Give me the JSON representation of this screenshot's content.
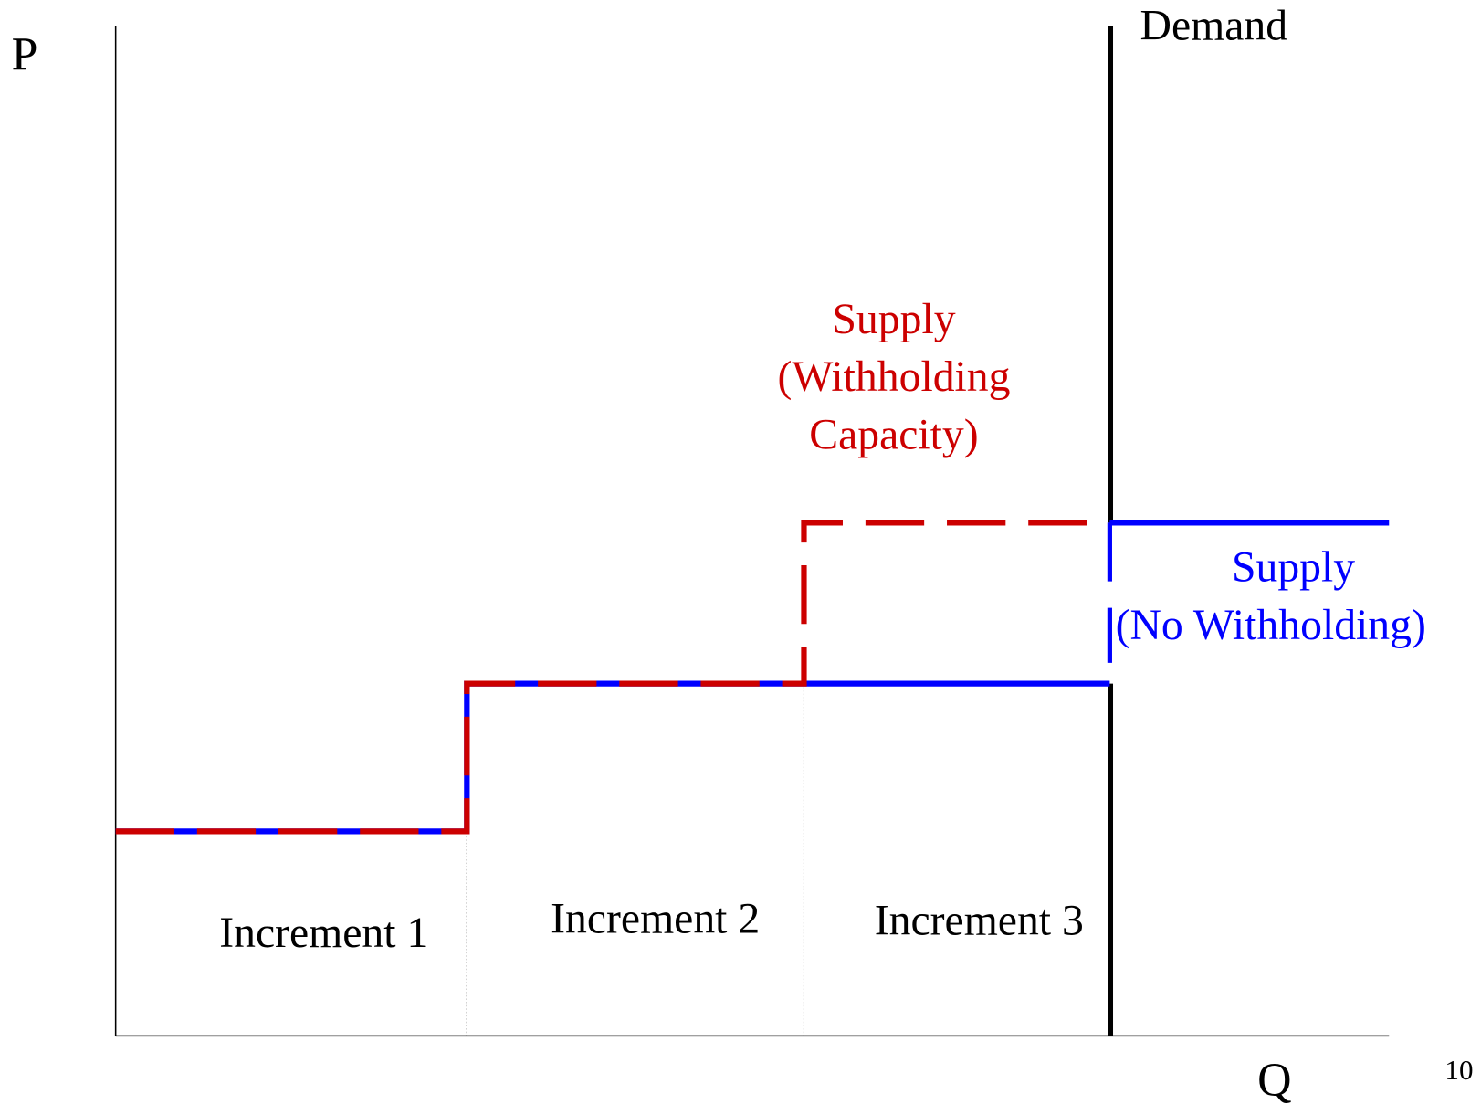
{
  "axes": {
    "y_label": "P",
    "x_label": "Q"
  },
  "demand": {
    "label": "Demand"
  },
  "supply_withholding": {
    "label": [
      "Supply",
      "(Withholding",
      "Capacity)"
    ]
  },
  "supply_no_withholding": {
    "label": [
      "Supply",
      "(No Withholding)"
    ]
  },
  "increments": [
    "Increment 1",
    "Increment 2",
    "Increment 3"
  ],
  "page_number": "10"
}
